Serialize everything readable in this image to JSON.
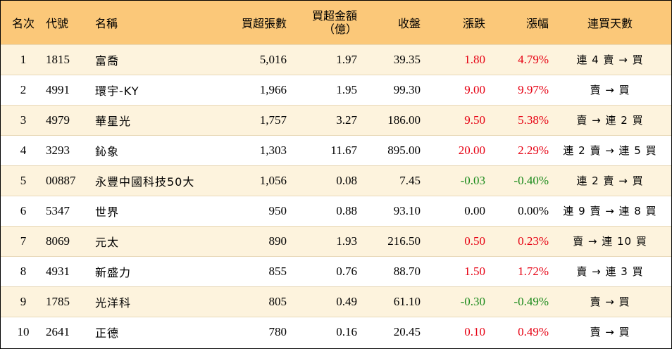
{
  "headers": {
    "rank": "名次",
    "code": "代號",
    "name": "名稱",
    "net_buy_shares": "買超張數",
    "net_buy_amount_line1": "買超金額",
    "net_buy_amount_line2": "（億）",
    "close": "收盤",
    "change": "漲跌",
    "change_pct": "漲幅",
    "consecutive_days": "連買天數"
  },
  "rows": [
    {
      "rank": "1",
      "code": "1815",
      "name": "富喬",
      "shares": "5,016",
      "amount": "1.97",
      "close": "39.35",
      "change": "1.80",
      "pct": "4.79%",
      "trend": "連 4 賣 → 買",
      "dir": "up"
    },
    {
      "rank": "2",
      "code": "4991",
      "name": "環宇-KY",
      "shares": "1,966",
      "amount": "1.95",
      "close": "99.30",
      "change": "9.00",
      "pct": "9.97%",
      "trend": "賣 → 買",
      "dir": "up"
    },
    {
      "rank": "3",
      "code": "4979",
      "name": "華星光",
      "shares": "1,757",
      "amount": "3.27",
      "close": "186.00",
      "change": "9.50",
      "pct": "5.38%",
      "trend": "賣 → 連 2 買",
      "dir": "up"
    },
    {
      "rank": "4",
      "code": "3293",
      "name": "鈊象",
      "shares": "1,303",
      "amount": "11.67",
      "close": "895.00",
      "change": "20.00",
      "pct": "2.29%",
      "trend": "連 2 賣 → 連 5 買",
      "dir": "up"
    },
    {
      "rank": "5",
      "code": "00887",
      "name": "永豐中國科技50大",
      "shares": "1,056",
      "amount": "0.08",
      "close": "7.45",
      "change": "-0.03",
      "pct": "-0.40%",
      "trend": "連 2 賣 → 買",
      "dir": "down"
    },
    {
      "rank": "6",
      "code": "5347",
      "name": "世界",
      "shares": "950",
      "amount": "0.88",
      "close": "93.10",
      "change": "0.00",
      "pct": "0.00%",
      "trend": "連 9 賣 → 連 8 買",
      "dir": "flat"
    },
    {
      "rank": "7",
      "code": "8069",
      "name": "元太",
      "shares": "890",
      "amount": "1.93",
      "close": "216.50",
      "change": "0.50",
      "pct": "0.23%",
      "trend": "賣 → 連 10 買",
      "dir": "up"
    },
    {
      "rank": "8",
      "code": "4931",
      "name": "新盛力",
      "shares": "855",
      "amount": "0.76",
      "close": "88.70",
      "change": "1.50",
      "pct": "1.72%",
      "trend": "賣 → 連 3 買",
      "dir": "up"
    },
    {
      "rank": "9",
      "code": "1785",
      "name": "光洋科",
      "shares": "805",
      "amount": "0.49",
      "close": "61.10",
      "change": "-0.30",
      "pct": "-0.49%",
      "trend": "賣 → 買",
      "dir": "down"
    },
    {
      "rank": "10",
      "code": "2641",
      "name": "正德",
      "shares": "780",
      "amount": "0.16",
      "close": "20.45",
      "change": "0.10",
      "pct": "0.49%",
      "trend": "賣 → 買",
      "dir": "up"
    }
  ],
  "colors": {
    "header_bg": "#fbc879",
    "odd_row_bg": "#fdf3dd",
    "even_row_bg": "#ffffff",
    "up": "#e60012",
    "down": "#1a8a1a",
    "flat": "#000000"
  }
}
